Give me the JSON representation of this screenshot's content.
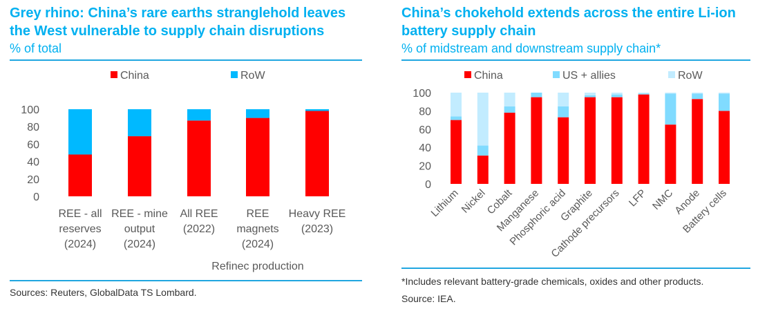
{
  "colors": {
    "title": "#00b0f0",
    "china": "#ff0000",
    "row_left": "#00b9ff",
    "us_allies": "#80dbff",
    "row_right": "#c2ecff",
    "rule": "#1fa6e0"
  },
  "left": {
    "title_line1": "Grey rhino: China’s rare earths stranglehold leaves",
    "title_line2": "the West vulnerable to supply chain disruptions",
    "subtitle": "% of total",
    "source": "Sources: Reuters, GlobalData TS Lombard."
  },
  "right": {
    "title_line1": "China’s chokehold extends across the entire Li-ion",
    "title_line2": "battery supply chain",
    "subtitle": "% of midstream and downstream supply chain*",
    "footnote": "*Includes relevant battery-grade chemicals, oxides and other products.",
    "source": "Source: IEA."
  },
  "chart_data": [
    {
      "type": "bar",
      "stacked": true,
      "title": "Grey rhino: China’s rare earths stranglehold leaves the West vulnerable to supply chain disruptions",
      "subtitle": "% of total",
      "categories": [
        [
          "REE - all",
          "reserves",
          "(2024)"
        ],
        [
          "REE - mine",
          "output",
          "(2024)"
        ],
        [
          "All REE",
          "(2022)"
        ],
        [
          "REE",
          "magnets",
          "(2024)"
        ],
        [
          "Heavy REE",
          "(2023)"
        ]
      ],
      "group_label": "Refinec production",
      "series": [
        {
          "name": "China",
          "values": [
            48,
            69,
            87,
            90,
            98
          ]
        },
        {
          "name": "RoW",
          "values": [
            52,
            31,
            13,
            10,
            2
          ]
        }
      ],
      "yticks": [
        "0",
        "20",
        "40",
        "60",
        "80",
        "100"
      ],
      "ylim": [
        0,
        100
      ],
      "legend": "top",
      "grid": false
    },
    {
      "type": "bar",
      "stacked": true,
      "title": "China’s chokehold extends across the entire Li-ion battery supply chain",
      "subtitle": "% of midstream and downstream supply chain*",
      "categories": [
        "Lithium",
        "Nickel",
        "Cobalt",
        "Manganese",
        "Phosphoric acid",
        "Graphite",
        "Cathode precursors",
        "LFP",
        "NMC",
        "Anode",
        "Battery cells"
      ],
      "series": [
        {
          "name": "China",
          "values": [
            70,
            31,
            78,
            95,
            73,
            95,
            95,
            98,
            65,
            93,
            80
          ]
        },
        {
          "name": "US + allies",
          "values": [
            4,
            11,
            7,
            5,
            12,
            2,
            3,
            1,
            34,
            6,
            19
          ]
        },
        {
          "name": "RoW",
          "values": [
            26,
            58,
            15,
            0,
            15,
            3,
            2,
            1,
            1,
            1,
            1
          ]
        }
      ],
      "yticks": [
        "0",
        "20",
        "40",
        "60",
        "80",
        "100"
      ],
      "ylim": [
        0,
        100
      ],
      "legend": "top",
      "grid": false
    }
  ]
}
